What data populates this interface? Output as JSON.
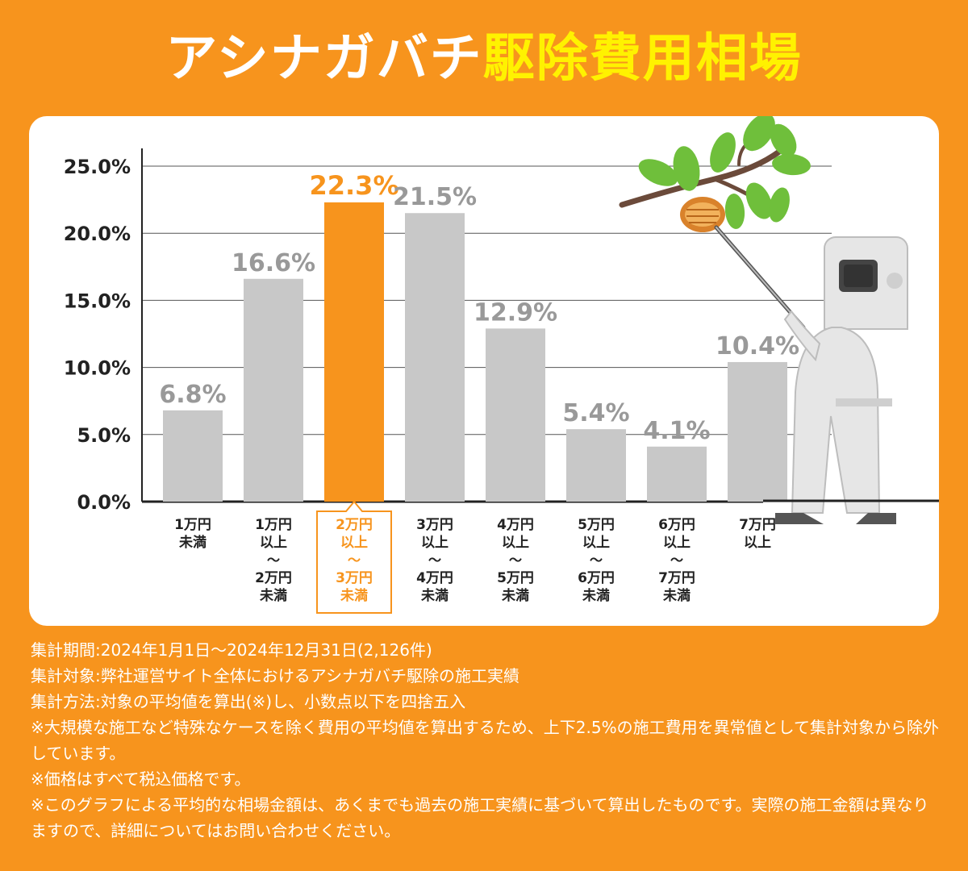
{
  "header": {
    "title_white": "アシナガバチ",
    "title_yellow": "駆除費用相場"
  },
  "colors": {
    "background": "#F7941D",
    "bar": "#C8C8C8",
    "highlight": "#F7941D",
    "value_label": "#999999",
    "title_accent": "#FFF200"
  },
  "chart_data": {
    "type": "bar",
    "categories": [
      [
        "1万円",
        "未満"
      ],
      [
        "1万円",
        "以上",
        "〜",
        "2万円",
        "未満"
      ],
      [
        "2万円",
        "以上",
        "〜",
        "3万円",
        "未満"
      ],
      [
        "3万円",
        "以上",
        "〜",
        "4万円",
        "未満"
      ],
      [
        "4万円",
        "以上",
        "〜",
        "5万円",
        "未満"
      ],
      [
        "5万円",
        "以上",
        "〜",
        "6万円",
        "未満"
      ],
      [
        "6万円",
        "以上",
        "〜",
        "7万円",
        "未満"
      ],
      [
        "7万円",
        "以上"
      ]
    ],
    "values": [
      6.8,
      16.6,
      22.3,
      21.5,
      12.9,
      5.4,
      4.1,
      10.4
    ],
    "value_labels": [
      "6.8%",
      "16.6%",
      "22.3%",
      "21.5%",
      "12.9%",
      "5.4%",
      "4.1%",
      "10.4%"
    ],
    "highlight_index": 2,
    "ylim": [
      0,
      25
    ],
    "yticks": [
      0,
      5,
      10,
      15,
      20,
      25
    ],
    "ytick_labels": [
      "0.0%",
      "5.0%",
      "10.0%",
      "15.0%",
      "20.0%",
      "25.0%"
    ],
    "grid": true,
    "title": "",
    "xlabel": "",
    "ylabel": ""
  },
  "notes": [
    "集計期間:2024年1月1日〜2024年12月31日(2,126件)",
    "集計対象:弊社運営サイト全体におけるアシナガバチ駆除の施工実績",
    "集計方法:対象の平均値を算出(※)し、小数点以下を四捨五入",
    "※大規模な施工など特殊なケースを除く費用の平均値を算出するため、上下2.5%の施工費用を異常値として集計対象から除外しています。",
    "※価格はすべて税込価格です。",
    "※このグラフによる平均的な相場金額は、あくまでも過去の施工実績に基づいて算出したものです。実際の施工金額は異なりますので、詳細についてはお問い合わせください。"
  ]
}
